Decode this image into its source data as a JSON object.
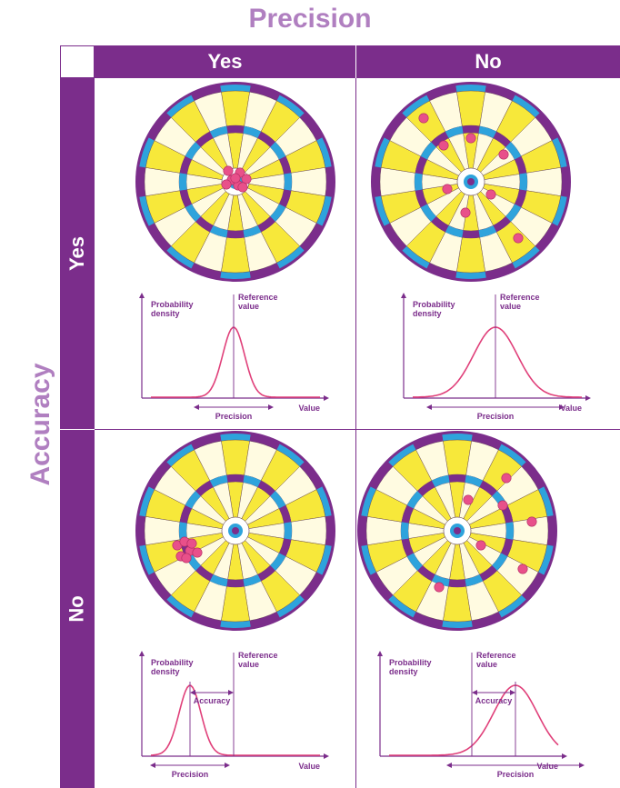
{
  "headings": {
    "precision": "Precision",
    "accuracy": "Accuracy"
  },
  "columns": [
    "Yes",
    "No"
  ],
  "rows": [
    "Yes",
    "No"
  ],
  "colors": {
    "purple": "#7b2d8b",
    "heading": "#b07fc0",
    "yellow": "#f7e83a",
    "cream": "#fffbe1",
    "blue": "#2ea3dc",
    "pink": "#e0407a",
    "dot": "#e8508a"
  },
  "panels": [
    {
      "id": "precise-accurate",
      "precision": "Yes",
      "accuracy": "Yes",
      "dart_hits": [
        [
          -8,
          -12
        ],
        [
          5,
          -10
        ],
        [
          12,
          -3
        ],
        [
          -4,
          -2
        ],
        [
          3,
          4
        ],
        [
          -10,
          3
        ],
        [
          8,
          6
        ],
        [
          0,
          -4
        ]
      ],
      "plot": {
        "ylabel": [
          "Probability",
          "density"
        ],
        "ref_label": [
          "Reference",
          "value"
        ],
        "xlabel": "Value",
        "precision_label": "Precision",
        "accuracy_label": "",
        "mean_offset": 0,
        "spread": "narrow"
      }
    },
    {
      "id": "imprecise-accurate",
      "precision": "No",
      "accuracy": "Yes",
      "dart_hits": [
        [
          -52,
          -70
        ],
        [
          -30,
          -40
        ],
        [
          0,
          -48
        ],
        [
          36,
          -30
        ],
        [
          -26,
          8
        ],
        [
          -6,
          34
        ],
        [
          22,
          14
        ],
        [
          52,
          62
        ]
      ],
      "plot": {
        "ylabel": [
          "Probability",
          "density"
        ],
        "ref_label": [
          "Reference",
          "value"
        ],
        "xlabel": "Value",
        "precision_label": "Precision",
        "accuracy_label": "",
        "mean_offset": 0,
        "spread": "wide"
      }
    },
    {
      "id": "precise-inaccurate",
      "precision": "Yes",
      "accuracy": "No",
      "dart_hits": [
        [
          -64,
          16
        ],
        [
          -56,
          12
        ],
        [
          -50,
          22
        ],
        [
          -60,
          28
        ],
        [
          -54,
          30
        ],
        [
          -42,
          24
        ],
        [
          -48,
          14
        ]
      ],
      "plot": {
        "ylabel": [
          "Probability",
          "density"
        ],
        "ref_label": [
          "Reference",
          "value"
        ],
        "xlabel": "Value",
        "precision_label": "Precision",
        "accuracy_label": "Accuracy",
        "mean_offset": -1,
        "spread": "narrow"
      }
    },
    {
      "id": "imprecise-inaccurate",
      "precision": "No",
      "accuracy": "No",
      "dart_hits": [
        [
          54,
          -58
        ],
        [
          12,
          -34
        ],
        [
          50,
          -28
        ],
        [
          82,
          -10
        ],
        [
          26,
          16
        ],
        [
          72,
          42
        ],
        [
          -20,
          62
        ]
      ],
      "plot": {
        "ylabel": [
          "Probability",
          "density"
        ],
        "ref_label": [
          "Reference",
          "value"
        ],
        "xlabel": "Value",
        "precision_label": "Precision",
        "accuracy_label": "Accuracy",
        "mean_offset": 1,
        "spread": "wide"
      }
    }
  ]
}
